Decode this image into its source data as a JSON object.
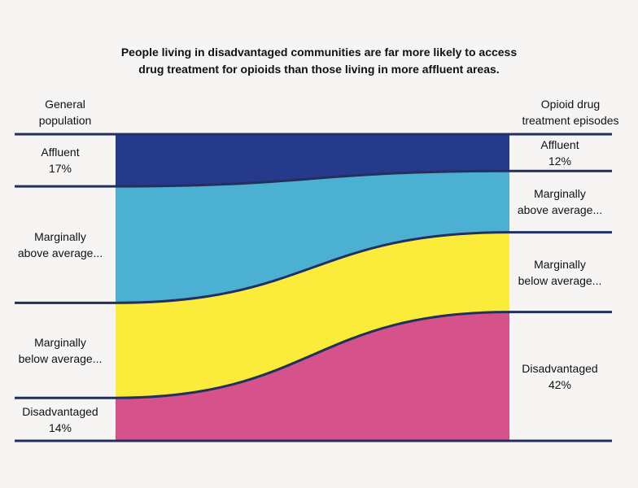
{
  "title_lines": [
    "People living in disadvantaged communities are far more likely to access",
    "drug treatment for opioids than those living in more affluent areas."
  ],
  "left_header_lines": [
    "General",
    "population"
  ],
  "right_header_lines": [
    "Opioid drug",
    "treatment episodes"
  ],
  "colors": {
    "Affluent": "#263a8c",
    "Marginally above average": "#4bb0d1",
    "Marginally below average": "#fbec3c",
    "Disadvantaged": "#d5538a",
    "rule": "#23305e"
  },
  "chart_data": {
    "type": "sankey",
    "title": "People living in disadvantaged communities are far more likely to access drug treatment for opioids than those living in more affluent areas.",
    "columns": [
      "General population",
      "Opioid drug treatment episodes"
    ],
    "categories": [
      "Affluent",
      "Marginally above average",
      "Marginally below average",
      "Disadvantaged"
    ],
    "series": [
      {
        "name": "General population",
        "values": [
          17,
          38,
          31,
          14
        ]
      },
      {
        "name": "Opioid drug treatment episodes",
        "values": [
          12,
          20,
          26,
          42
        ]
      }
    ],
    "left_labels": [
      [
        "Affluent",
        "17%"
      ],
      [
        "Marginally",
        "above average..."
      ],
      [
        "Marginally",
        "below average..."
      ],
      [
        "Disadvantaged",
        "14%"
      ]
    ],
    "right_labels": [
      [
        "Affluent",
        "12%"
      ],
      [
        "Marginally",
        "above average..."
      ],
      [
        "Marginally",
        "below average..."
      ],
      [
        "Disadvantaged",
        "42%"
      ]
    ]
  }
}
